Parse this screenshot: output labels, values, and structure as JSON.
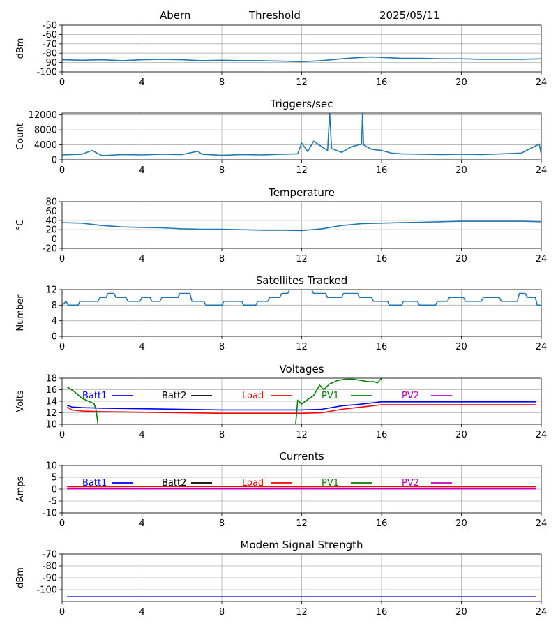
{
  "header": {
    "site": "Abern",
    "mode": "Threshold",
    "date": "2025/05/11"
  },
  "colors": {
    "series": "#1f77b4",
    "batt1": "#0000ff",
    "batt2": "#000000",
    "load": "#ff0000",
    "pv1": "#008000",
    "pv2": "#bf00bf",
    "grid": "#b0b0b0"
  },
  "chart_data": [
    {
      "id": "threshold",
      "type": "line",
      "title": "",
      "ylabel": "dBm",
      "xlim": [
        0,
        24
      ],
      "xticks": [
        0,
        4,
        8,
        12,
        16,
        20,
        24
      ],
      "ylim": [
        -100,
        -50
      ],
      "yticks": [
        -100,
        -90,
        -80,
        -70,
        -60,
        -50
      ],
      "grid": true,
      "series": [
        {
          "x": [
            0,
            1,
            2,
            3,
            4,
            5,
            6,
            7,
            8,
            9,
            10,
            11,
            12,
            13,
            14,
            15,
            15.5,
            16,
            17,
            18,
            19,
            20,
            21,
            22,
            23,
            24
          ],
          "y": [
            -87,
            -87.5,
            -87,
            -88,
            -87,
            -86.5,
            -87,
            -88,
            -87.5,
            -88,
            -88,
            -88.5,
            -89,
            -88,
            -86,
            -84.5,
            -84,
            -84.5,
            -85.5,
            -85.5,
            -86,
            -86,
            -86.5,
            -86.5,
            -86.5,
            -86
          ]
        }
      ]
    },
    {
      "id": "triggers",
      "type": "line",
      "title": "Triggers/sec",
      "ylabel": "Count",
      "xlim": [
        0,
        24
      ],
      "xticks": [
        0,
        4,
        8,
        12,
        16,
        20,
        24
      ],
      "ylim": [
        0,
        12500
      ],
      "yticks": [
        0,
        4000,
        8000,
        12000
      ],
      "grid": true,
      "series": [
        {
          "x": [
            0,
            1,
            1.5,
            2,
            3,
            4,
            5,
            6,
            6.8,
            7,
            8,
            9,
            10,
            11,
            11.8,
            12,
            12.3,
            12.6,
            13,
            13.3,
            13.4,
            13.5,
            14,
            14.5,
            15,
            15.05,
            15.1,
            15.5,
            16,
            16.5,
            17,
            18,
            19,
            20,
            21,
            22,
            23,
            23.9,
            24
          ],
          "y": [
            1300,
            1500,
            2500,
            1100,
            1400,
            1300,
            1500,
            1400,
            2300,
            1500,
            1200,
            1400,
            1300,
            1500,
            1600,
            4500,
            2200,
            5000,
            3500,
            2500,
            12500,
            3000,
            2000,
            3500,
            4200,
            12500,
            4000,
            2800,
            2500,
            1800,
            1600,
            1500,
            1400,
            1500,
            1400,
            1600,
            1800,
            4200,
            1500
          ]
        }
      ]
    },
    {
      "id": "temperature",
      "type": "line",
      "title": "Temperature",
      "ylabel": "°C",
      "xlim": [
        0,
        24
      ],
      "xticks": [
        0,
        4,
        8,
        12,
        16,
        20,
        24
      ],
      "ylim": [
        -20,
        80
      ],
      "yticks": [
        -20,
        0,
        20,
        40,
        60,
        80
      ],
      "grid": true,
      "series": [
        {
          "x": [
            0,
            1,
            2,
            3,
            4,
            5,
            6,
            7,
            8,
            9,
            10,
            11,
            12,
            13,
            14,
            15,
            16,
            17,
            18,
            19,
            20,
            21,
            22,
            23,
            24
          ],
          "y": [
            35,
            34,
            29,
            26,
            25,
            24,
            22,
            21,
            21,
            20,
            19,
            19,
            18,
            22,
            29,
            33,
            34,
            35,
            36,
            37,
            38,
            38,
            38,
            38,
            37
          ]
        }
      ]
    },
    {
      "id": "satellites",
      "type": "line",
      "title": "Satellites Tracked",
      "ylabel": "Number",
      "xlim": [
        0,
        24
      ],
      "xticks": [
        0,
        4,
        8,
        12,
        16,
        20,
        24
      ],
      "ylim": [
        0,
        12
      ],
      "yticks": [
        0,
        4,
        8,
        12
      ],
      "grid": true,
      "series": [
        {
          "x": [
            0,
            0.2,
            0.3,
            0.8,
            0.9,
            1.8,
            1.9,
            2.2,
            2.3,
            2.6,
            2.7,
            3.2,
            3.3,
            3.9,
            4.0,
            4.4,
            4.5,
            4.9,
            5.0,
            5.8,
            5.9,
            6.4,
            6.5,
            7.1,
            7.2,
            8.0,
            8.1,
            9.0,
            9.1,
            9.7,
            9.8,
            10.3,
            10.4,
            10.9,
            11.0,
            11.3,
            11.4,
            12.5,
            12.6,
            13.2,
            13.3,
            14.0,
            14.1,
            14.8,
            14.9,
            15.5,
            15.6,
            16.3,
            16.4,
            17.0,
            17.1,
            17.8,
            17.9,
            18.7,
            18.8,
            19.3,
            19.4,
            20.1,
            20.2,
            21.0,
            21.1,
            21.9,
            22.0,
            22.8,
            22.9,
            23.2,
            23.3,
            23.7,
            23.8,
            24
          ],
          "y": [
            8,
            9,
            8,
            8,
            9,
            9,
            10,
            10,
            11,
            11,
            10,
            10,
            9,
            9,
            10,
            10,
            9,
            9,
            10,
            10,
            11,
            11,
            9,
            9,
            8,
            8,
            9,
            9,
            8,
            8,
            9,
            9,
            10,
            10,
            11,
            11,
            12,
            12,
            11,
            11,
            10,
            10,
            11,
            11,
            10,
            10,
            9,
            9,
            8,
            8,
            9,
            9,
            8,
            8,
            9,
            9,
            10,
            10,
            9,
            9,
            10,
            10,
            9,
            9,
            11,
            11,
            10,
            10,
            8,
            8
          ]
        }
      ]
    },
    {
      "id": "voltages",
      "type": "line",
      "title": "Voltages",
      "ylabel": "Volts",
      "xlim": [
        0,
        24
      ],
      "xticks": [
        0,
        4,
        8,
        12,
        16,
        20,
        24
      ],
      "ylim": [
        10,
        18
      ],
      "yticks": [
        10,
        12,
        14,
        16,
        18
      ],
      "grid": true,
      "legend": [
        "Batt1",
        "Batt2",
        "Load",
        "PV1",
        "PV2"
      ],
      "series": [
        {
          "name": "Batt1",
          "color": "batt1",
          "x": [
            0.25,
            0.5,
            1,
            2,
            4,
            6,
            8,
            10,
            12,
            13,
            14,
            15,
            16,
            18,
            20,
            22,
            23.75
          ],
          "y": [
            13.3,
            13.0,
            12.9,
            12.8,
            12.7,
            12.6,
            12.5,
            12.5,
            12.5,
            12.6,
            13.2,
            13.5,
            13.9,
            13.9,
            13.9,
            13.9,
            13.9
          ]
        },
        {
          "name": "Load",
          "color": "load",
          "x": [
            0.25,
            0.5,
            1,
            2,
            4,
            6,
            8,
            10,
            12,
            13,
            14,
            15,
            16,
            18,
            20,
            22,
            23.75
          ],
          "y": [
            13.0,
            12.5,
            12.3,
            12.2,
            12.1,
            12.0,
            11.9,
            11.9,
            11.9,
            12.0,
            12.6,
            13.0,
            13.4,
            13.4,
            13.4,
            13.4,
            13.4
          ]
        },
        {
          "name": "PV1",
          "color": "pv1",
          "x": [
            0.25,
            0.6,
            1.0,
            1.4,
            1.6,
            1.7,
            1.8
          ],
          "y": [
            16.5,
            15.7,
            14.5,
            13.9,
            13.6,
            12.5,
            10.0
          ]
        },
        {
          "name": "PV1",
          "color": "pv1",
          "x": [
            11.7,
            11.8,
            12.0,
            12.3,
            12.6,
            12.9,
            13.1,
            13.4,
            13.8,
            14.2,
            14.6,
            15.0,
            15.3,
            15.6,
            15.8,
            16.0
          ],
          "y": [
            10.0,
            14.2,
            13.5,
            14.3,
            15.0,
            16.8,
            16.0,
            17.0,
            17.6,
            17.8,
            17.8,
            17.6,
            17.4,
            17.4,
            17.2,
            18.0
          ]
        }
      ]
    },
    {
      "id": "currents",
      "type": "line",
      "title": "Currents",
      "ylabel": "Amps",
      "xlim": [
        0,
        24
      ],
      "xticks": [
        0,
        4,
        8,
        12,
        16,
        20,
        24
      ],
      "ylim": [
        -10,
        10
      ],
      "yticks": [
        -10,
        -5,
        0,
        5,
        10
      ],
      "grid": true,
      "legend": [
        "Batt1",
        "Batt2",
        "Load",
        "PV1",
        "PV2"
      ],
      "series": [
        {
          "name": "Load",
          "color": "load",
          "x": [
            0.25,
            4,
            8,
            12,
            16,
            20,
            23.75
          ],
          "y": [
            1.0,
            1.1,
            1.1,
            1.0,
            1.1,
            1.0,
            1.0
          ]
        },
        {
          "name": "Batt1",
          "color": "batt1",
          "x": [
            0.25,
            23.75
          ],
          "y": [
            0.3,
            0.3
          ]
        },
        {
          "name": "PV2",
          "color": "pv2",
          "x": [
            0.25,
            23.75
          ],
          "y": [
            0.1,
            0.1
          ]
        }
      ]
    },
    {
      "id": "modem",
      "type": "line",
      "title": "Modem Signal Strength",
      "ylabel": "dBm",
      "xlim": [
        0,
        24
      ],
      "xticks": [
        0,
        4,
        8,
        12,
        16,
        20,
        24
      ],
      "ylim": [
        -110,
        -70
      ],
      "yticks": [
        -100,
        -90,
        -80,
        -70
      ],
      "grid": true,
      "series": [
        {
          "name": "",
          "color": "batt1",
          "x": [
            0.25,
            23.75
          ],
          "y": [
            -106,
            -106
          ]
        }
      ]
    }
  ]
}
